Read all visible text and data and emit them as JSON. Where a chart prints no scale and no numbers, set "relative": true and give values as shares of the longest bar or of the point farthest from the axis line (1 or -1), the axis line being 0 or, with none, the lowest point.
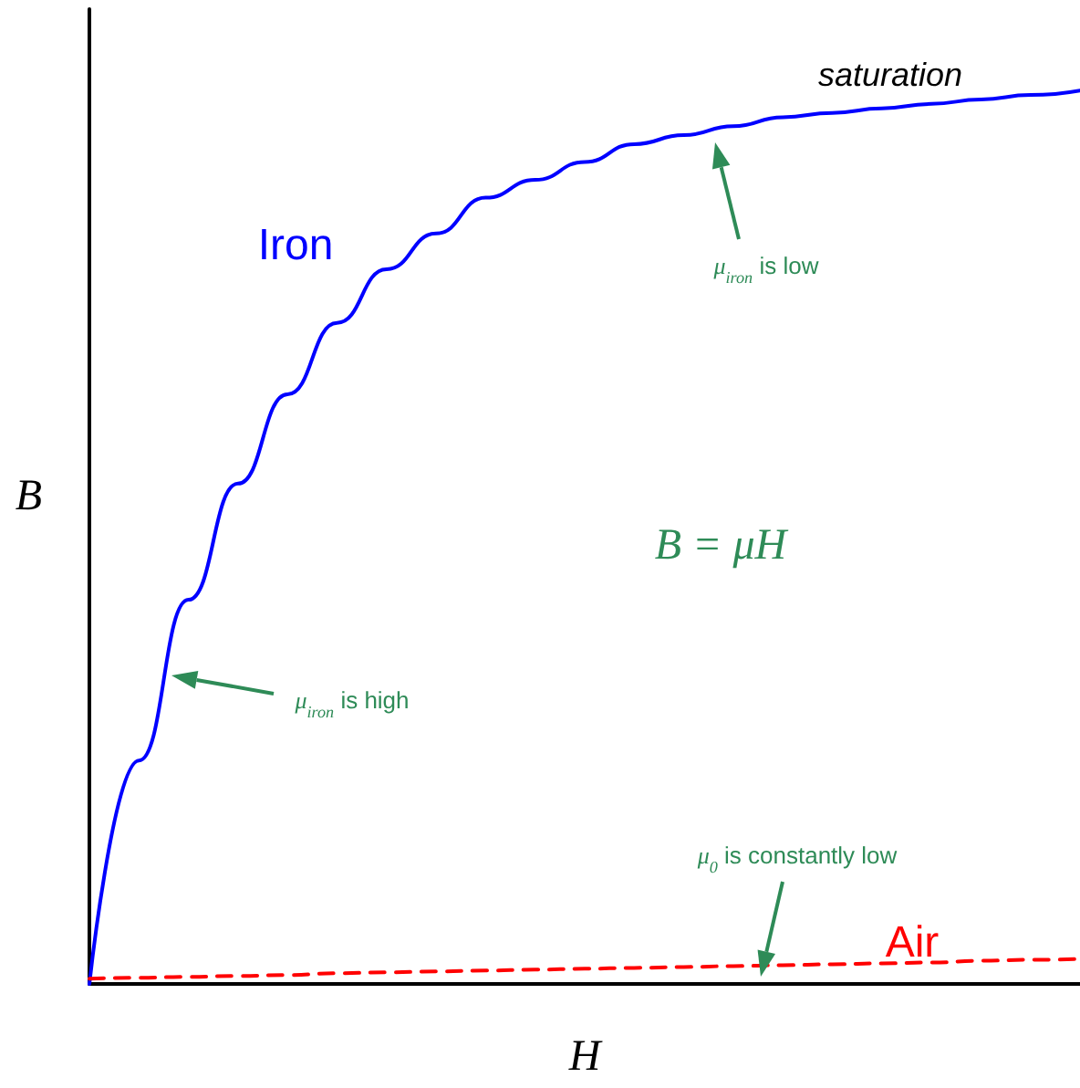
{
  "chart_data": {
    "type": "line",
    "relative": true,
    "xlabel": "H",
    "ylabel": "B",
    "categories": [
      null,
      null,
      null,
      null,
      null,
      null,
      null,
      null,
      null,
      null,
      null,
      null,
      null,
      null,
      null,
      null,
      null,
      null,
      null,
      null,
      null
    ],
    "series": [
      {
        "name": "Iron",
        "color": "#0000ff",
        "line_style": "solid",
        "values": [
          0,
          0.25,
          0.43,
          0.56,
          0.66,
          0.74,
          0.8,
          0.84,
          0.88,
          0.9,
          0.92,
          0.94,
          0.95,
          0.96,
          0.97,
          0.975,
          0.98,
          0.985,
          0.99,
          0.995,
          1
        ]
      },
      {
        "name": "Air",
        "color": "#ff0000",
        "line_style": "dashed",
        "values": [
          0.006,
          0.007,
          0.008,
          0.009,
          0.01,
          0.012,
          0.013,
          0.014,
          0.015,
          0.016,
          0.017,
          0.018,
          0.019,
          0.02,
          0.021,
          0.022,
          0.023,
          0.024,
          0.026,
          0.027,
          0.028
        ]
      }
    ],
    "annotations": [
      "saturation",
      "B = μH",
      "μ$_{iron}$ is low",
      "μ$_{iron}$ is high",
      "μ$_{0}$ is constantly low"
    ],
    "grid": false,
    "legend": false,
    "marker": "none"
  }
}
